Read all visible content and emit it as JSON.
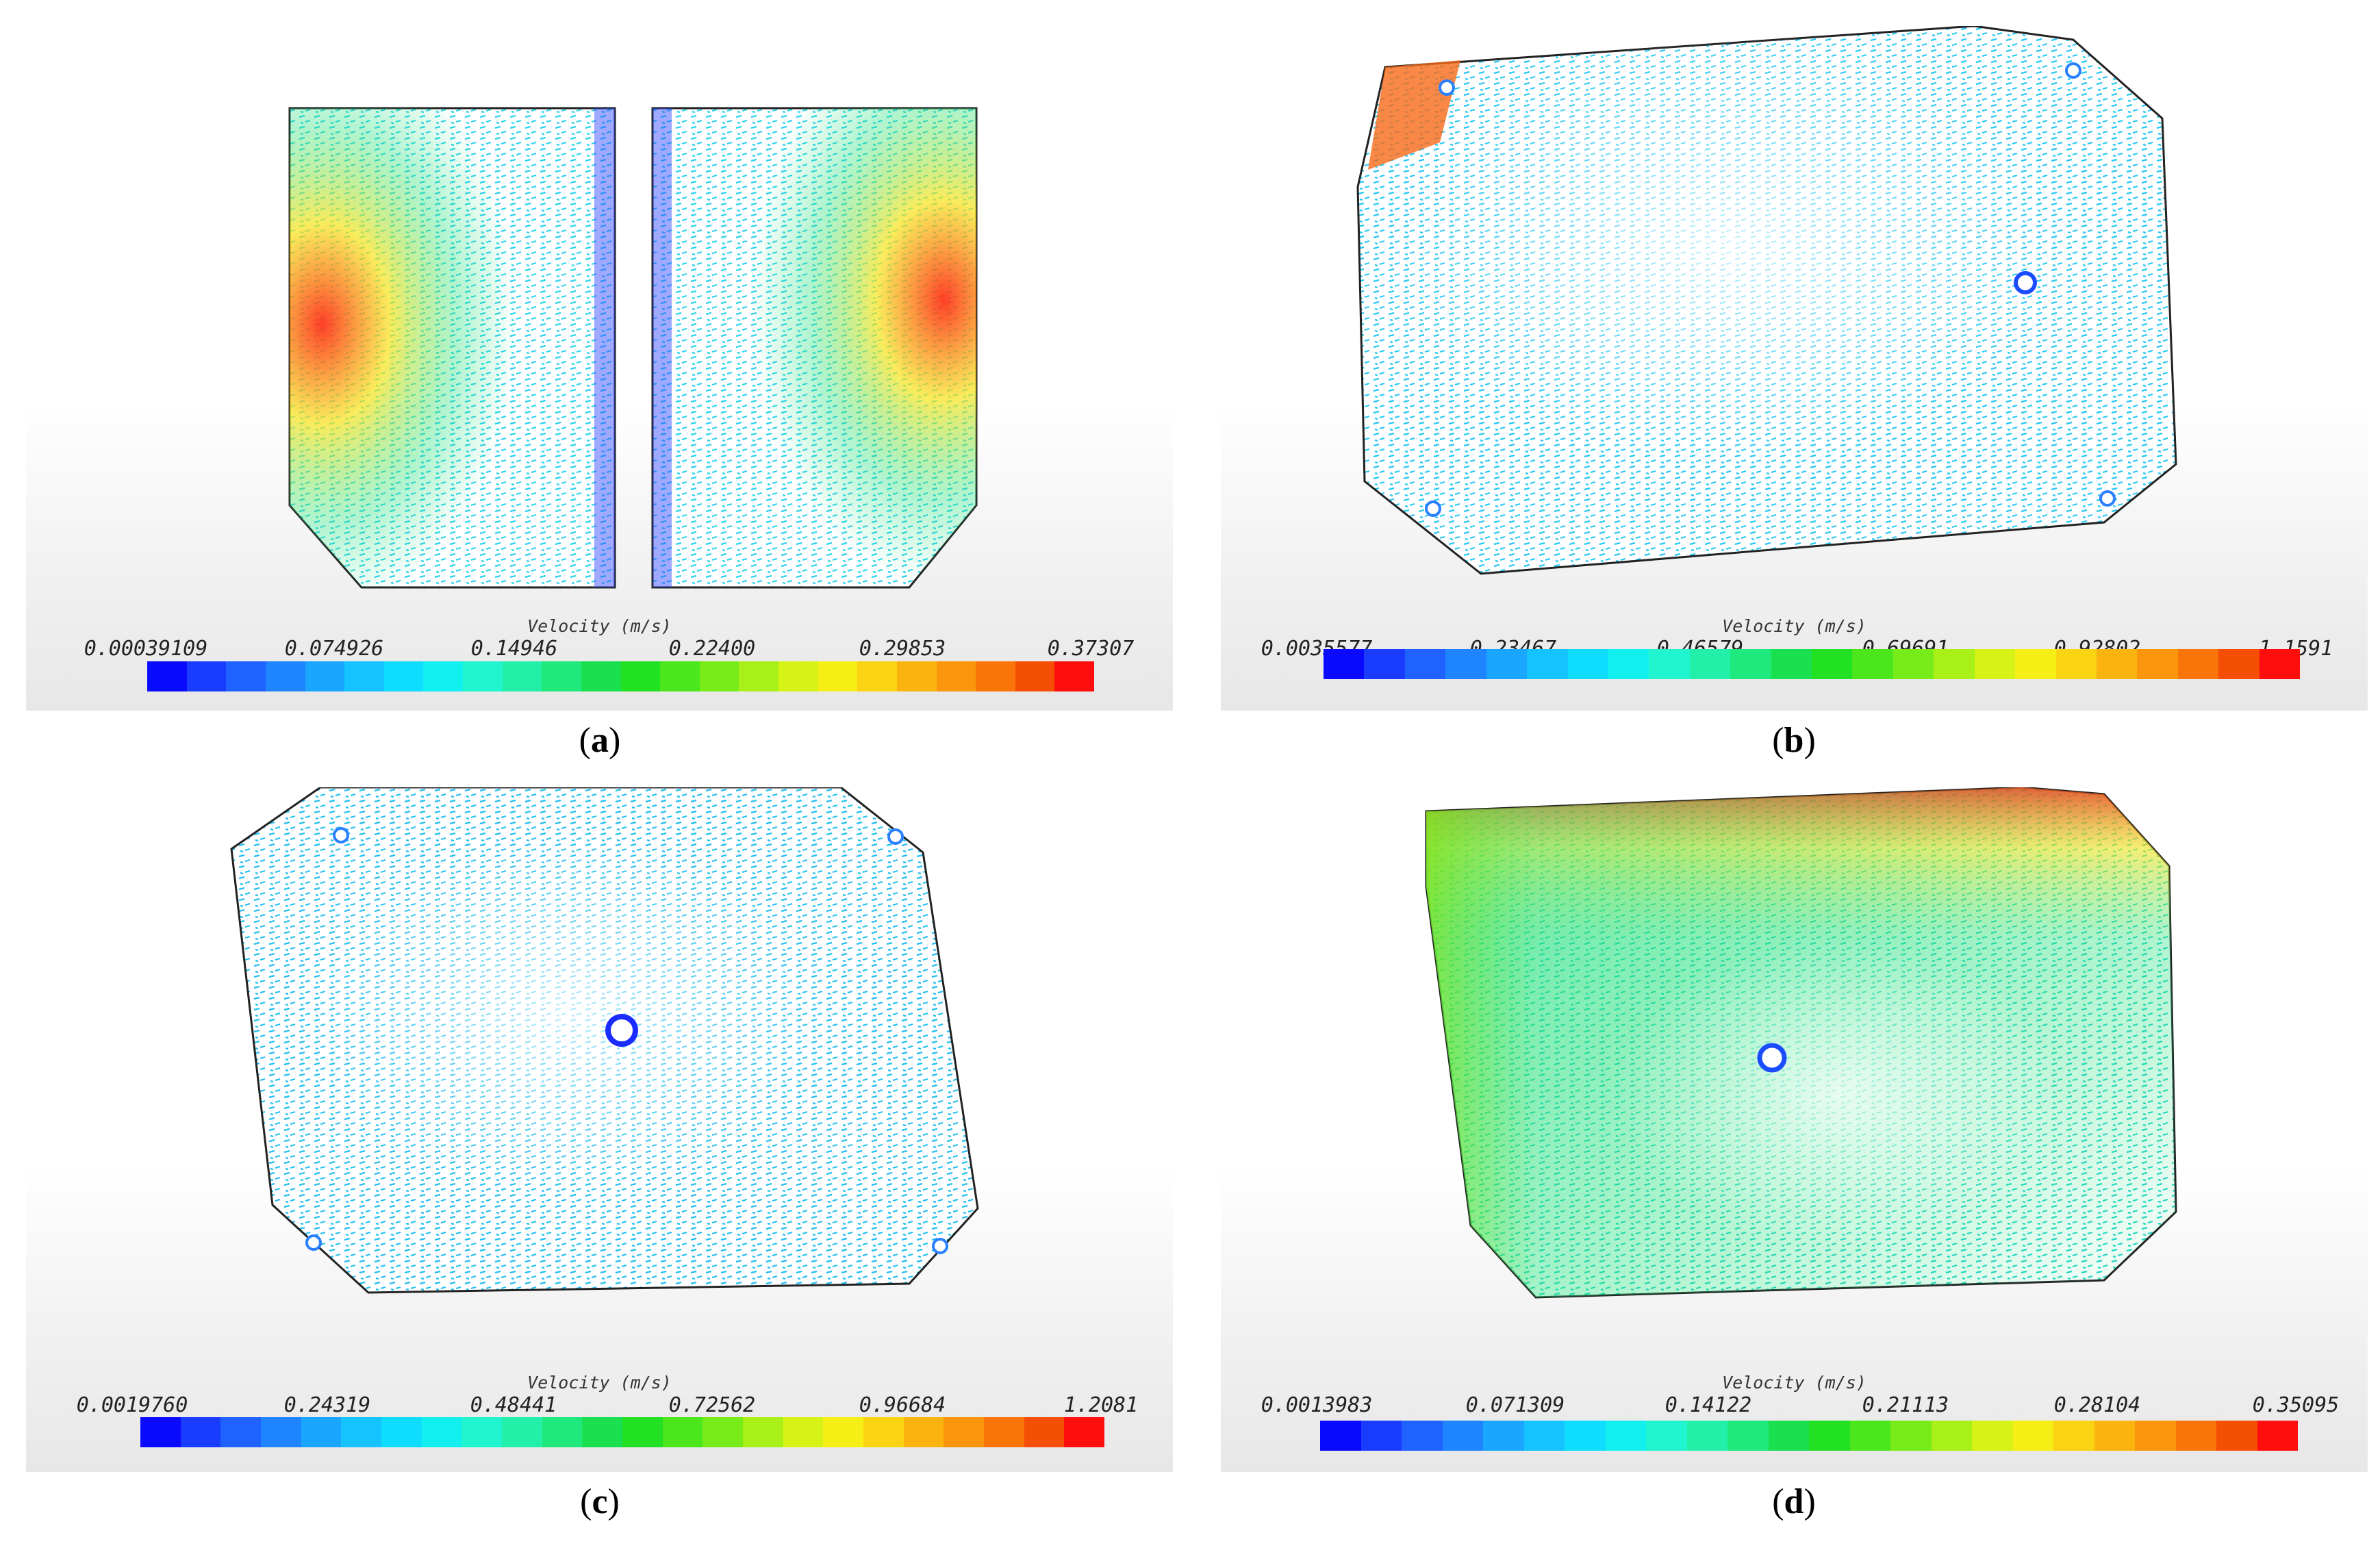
{
  "colorbar": {
    "colors": [
      "#0a0aff",
      "#1a3cff",
      "#1f62ff",
      "#1f84ff",
      "#1aa6ff",
      "#14c3ff",
      "#0fddff",
      "#12efef",
      "#20f5d0",
      "#22f0a8",
      "#1fe87c",
      "#1adf4e",
      "#22e022",
      "#4be61c",
      "#78ec18",
      "#a8f017",
      "#d6f216",
      "#f6ef15",
      "#fad312",
      "#fbb40f",
      "#fb960c",
      "#f97509",
      "#f54e05",
      "#ff0e0e"
    ]
  },
  "panels": [
    {
      "label": "a",
      "legend_title": "Velocity (m/s)",
      "ticks": [
        "0.00039109",
        "0.074926",
        "0.14946",
        "0.22400",
        "0.29853",
        "0.37307"
      ]
    },
    {
      "label": "b",
      "legend_title": "Velocity (m/s)",
      "ticks": [
        "0.0035577",
        "0.23467",
        "0.46579",
        "0.69691",
        "0.92802",
        "1.1591"
      ]
    },
    {
      "label": "c",
      "legend_title": "Velocity (m/s)",
      "ticks": [
        "0.0019760",
        "0.24319",
        "0.48441",
        "0.72562",
        "0.96684",
        "1.2081"
      ]
    },
    {
      "label": "d",
      "legend_title": "Velocity (m/s)",
      "ticks": [
        "0.0013983",
        "0.071309",
        "0.14122",
        "0.21113",
        "0.28104",
        "0.35095"
      ]
    }
  ]
}
